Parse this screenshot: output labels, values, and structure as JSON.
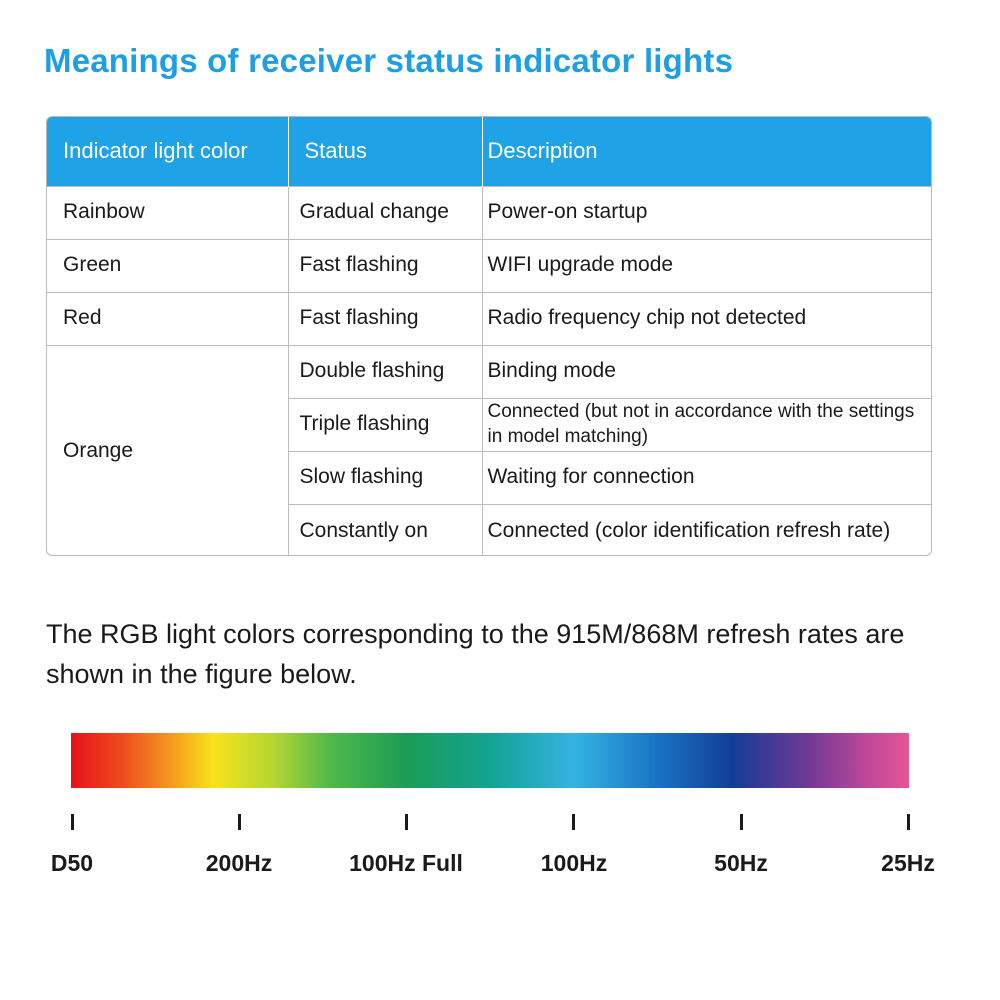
{
  "title": "Meanings of receiver status indicator lights",
  "table": {
    "headers": [
      "Indicator light color",
      "Status",
      "Description"
    ],
    "rows": [
      {
        "color": "Rainbow",
        "status": "Gradual change",
        "description": "Power-on startup"
      },
      {
        "color": "Green",
        "status": "Fast flashing",
        "description": "WIFI upgrade mode"
      },
      {
        "color": "Red",
        "status": "Fast flashing",
        "description": "Radio frequency chip not detected"
      }
    ],
    "orange_group": {
      "color": "Orange",
      "rows": [
        {
          "status": "Double flashing",
          "description": "Binding mode"
        },
        {
          "status": "Triple flashing",
          "description": "Connected (but not in accordance with the settings in model matching)"
        },
        {
          "status": "Slow flashing",
          "description": "Waiting for connection"
        },
        {
          "status": "Constantly on",
          "description": "Connected (color identification refresh rate)"
        }
      ]
    }
  },
  "caption": "The RGB light colors corresponding to the 915M/868M refresh rates are shown in the figure below.",
  "spectrum_scale": {
    "labels": [
      "D50",
      "200Hz",
      "100Hz Full",
      "100Hz",
      "50Hz",
      "25Hz"
    ]
  },
  "colors": {
    "accent": "#1fa3e6",
    "title": "#1e9fe3"
  }
}
